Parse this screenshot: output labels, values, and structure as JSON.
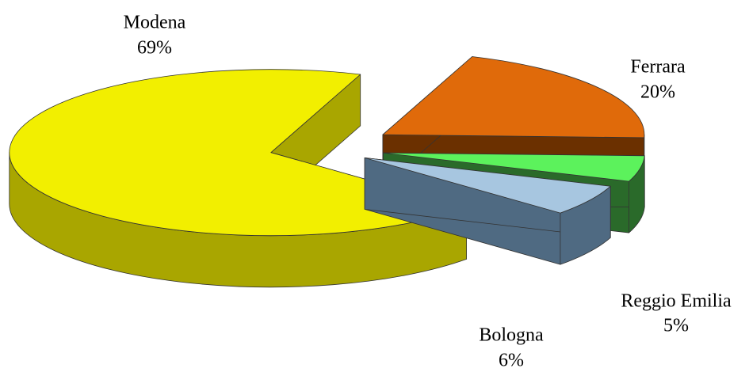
{
  "chart_data": {
    "type": "pie3d",
    "categories": [
      "Modena",
      "Ferrara",
      "Reggio Emilia",
      "Bologna"
    ],
    "values": [
      69,
      20,
      5,
      6
    ],
    "value_labels": [
      "69%",
      "20%",
      "5%",
      "6%"
    ],
    "colors": [
      "#f2ef00",
      "#e06a0a",
      "#5cf25c",
      "#a7c6e0"
    ],
    "side_colors": [
      "#a9a600",
      "#6b3000",
      "#2a6a2a",
      "#4f6a82"
    ]
  }
}
